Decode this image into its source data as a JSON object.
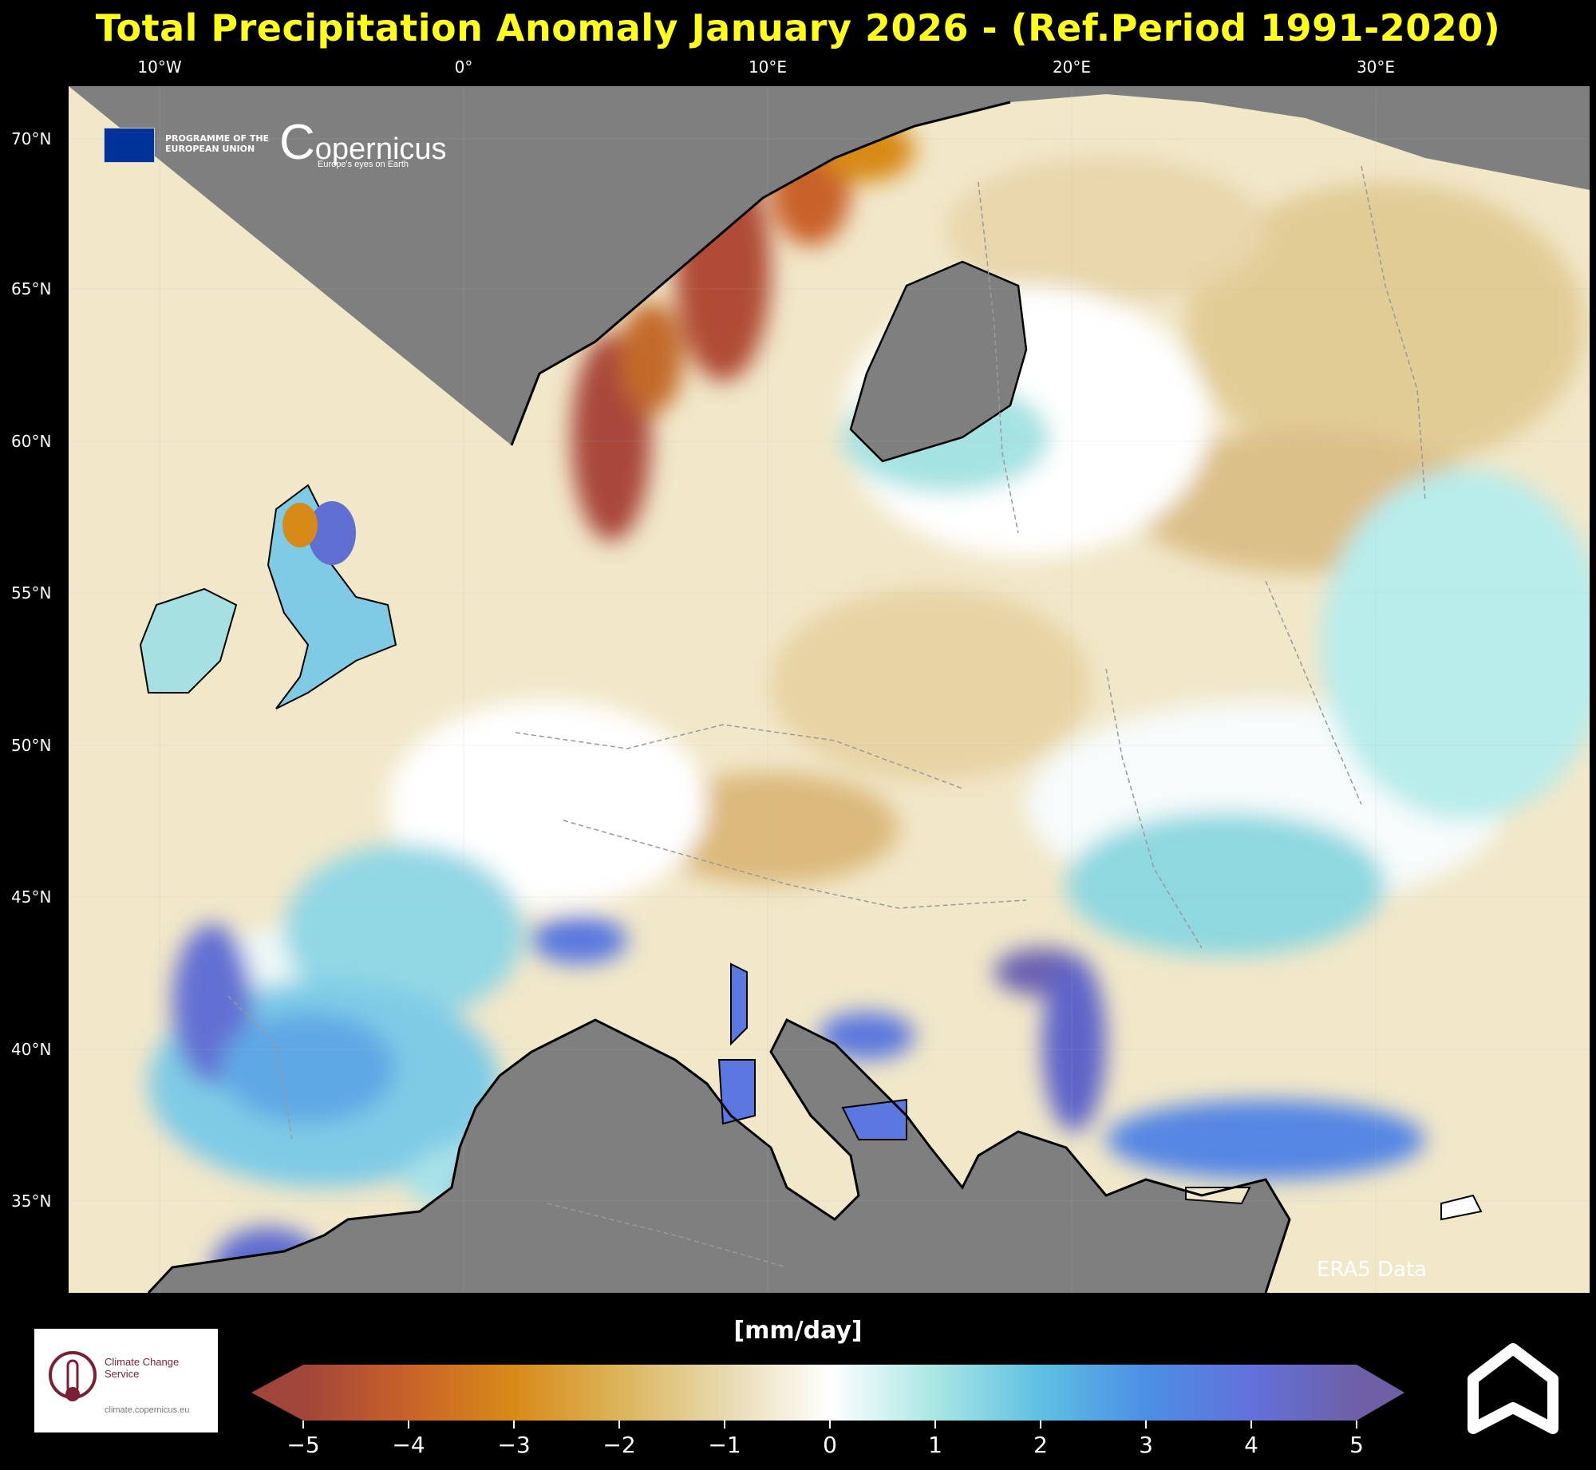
{
  "title": "Total Precipitation Anomaly January 2026 - (Ref.Period 1991-2020)",
  "map": {
    "lon_labels": [
      "10°W",
      "0°",
      "10°E",
      "20°E",
      "30°E"
    ],
    "lat_labels": [
      "70°N",
      "65°N",
      "60°N",
      "55°N",
      "50°N",
      "45°N",
      "40°N",
      "35°N"
    ],
    "source_note": "ERA5 Data",
    "land_color": "#7f7f7f"
  },
  "logos": {
    "eu_programme": "PROGRAMME OF THE EUROPEAN UNION",
    "copernicus": "opernicus",
    "copernicus_tagline": "Europe's eyes on Earth",
    "ccs_name": "Climate Change Service",
    "ccs_url": "climate.copernicus.eu"
  },
  "colorbar": {
    "unit": "[mm/day]",
    "ticks": [
      "−5",
      "−4",
      "−3",
      "−2",
      "−1",
      "0",
      "1",
      "2",
      "3",
      "4",
      "5"
    ],
    "colors": [
      "#a0453a",
      "#c9622a",
      "#d88a18",
      "#dcb45a",
      "#e7d9ae",
      "#ffffff",
      "#a9e6e3",
      "#5ec0e3",
      "#4b8fe4",
      "#6371dc",
      "#6f5fa7"
    ],
    "extend": "both"
  }
}
